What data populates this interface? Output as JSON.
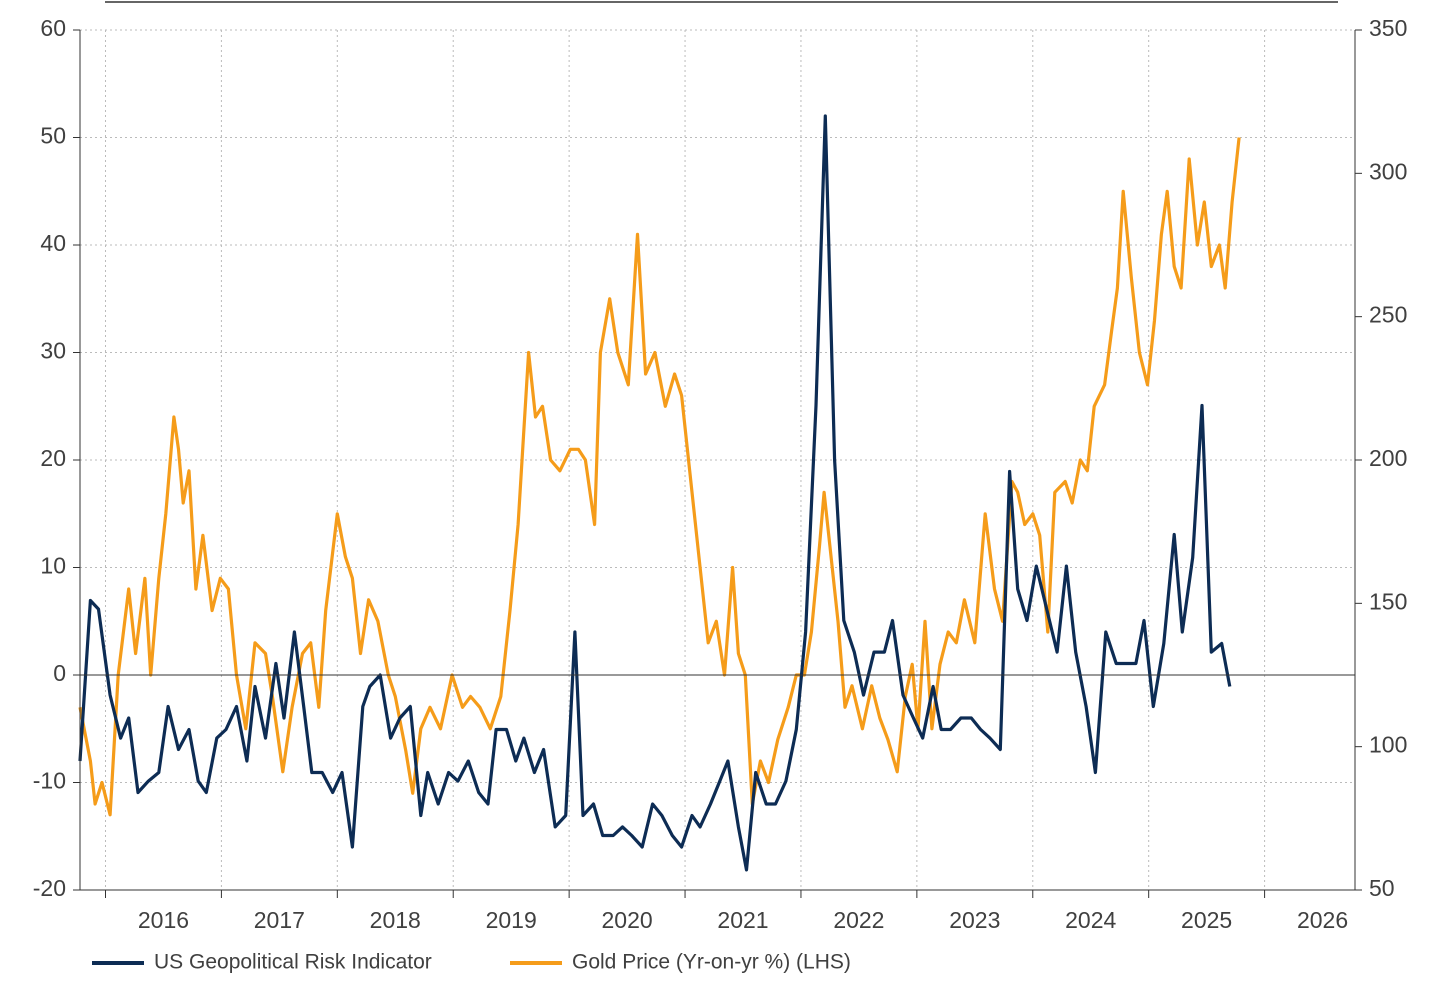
{
  "chart_data": {
    "type": "line",
    "xlim": [
      2015.78,
      2026.78
    ],
    "xticks": [
      2016,
      2017,
      2018,
      2019,
      2020,
      2021,
      2022,
      2023,
      2024,
      2025,
      2026
    ],
    "ylim": [
      -20,
      60
    ],
    "yticks": [
      -20,
      -10,
      0,
      10,
      20,
      30,
      40,
      50,
      60
    ],
    "y2lim": [
      50,
      350
    ],
    "y2ticks": [
      50,
      100,
      150,
      200,
      250,
      300,
      350
    ],
    "grid": true,
    "legend": "bottom",
    "series": [
      {
        "name": "US Geopolitical Risk Indicator",
        "color": "#0d2c54",
        "axis": "y2",
        "x": [
          2015.78,
          2015.87,
          2015.94,
          2016.04,
          2016.13,
          2016.2,
          2016.28,
          2016.37,
          2016.46,
          2016.54,
          2016.63,
          2016.72,
          2016.8,
          2016.87,
          2016.96,
          2017.04,
          2017.13,
          2017.22,
          2017.29,
          2017.38,
          2017.47,
          2017.54,
          2017.63,
          2017.71,
          2017.78,
          2017.87,
          2017.96,
          2018.04,
          2018.13,
          2018.22,
          2018.28,
          2018.37,
          2018.46,
          2018.54,
          2018.63,
          2018.72,
          2018.78,
          2018.87,
          2018.96,
          2019.04,
          2019.13,
          2019.22,
          2019.3,
          2019.37,
          2019.46,
          2019.54,
          2019.61,
          2019.7,
          2019.78,
          2019.88,
          2019.97,
          2020.05,
          2020.12,
          2020.21,
          2020.29,
          2020.38,
          2020.46,
          2020.54,
          2020.63,
          2020.72,
          2020.8,
          2020.89,
          2020.97,
          2021.06,
          2021.13,
          2021.22,
          2021.3,
          2021.37,
          2021.46,
          2021.53,
          2021.61,
          2021.7,
          2021.78,
          2021.87,
          2021.96,
          2022.04,
          2022.13,
          2022.21,
          2022.29,
          2022.37,
          2022.46,
          2022.54,
          2022.63,
          2022.72,
          2022.79,
          2022.88,
          2022.97,
          2023.05,
          2023.14,
          2023.21,
          2023.29,
          2023.38,
          2023.47,
          2023.55,
          2023.63,
          2023.72,
          2023.8,
          2023.87,
          2023.95,
          2024.03,
          2024.12,
          2024.21,
          2024.29,
          2024.37,
          2024.46,
          2024.54,
          2024.63,
          2024.72,
          2024.8,
          2024.89,
          2024.96,
          2025.04,
          2025.13,
          2025.22,
          2025.29,
          2025.38,
          2025.46,
          2025.54,
          2025.63,
          2025.7
        ],
        "values": [
          95,
          151,
          148,
          118,
          103,
          110,
          84,
          88,
          91,
          114,
          99,
          106,
          88,
          84,
          103,
          106,
          114,
          95,
          121,
          103,
          129,
          110,
          140,
          114,
          91,
          91,
          84,
          91,
          65,
          114,
          121,
          125,
          103,
          110,
          114,
          76,
          91,
          80,
          91,
          88,
          95,
          84,
          80,
          106,
          106,
          95,
          103,
          91,
          99,
          72,
          76,
          140,
          76,
          80,
          69,
          69,
          72,
          69,
          65,
          80,
          76,
          69,
          65,
          76,
          72,
          80,
          88,
          95,
          72,
          57,
          91,
          80,
          80,
          88,
          106,
          140,
          219,
          320,
          200,
          144,
          133,
          118,
          133,
          133,
          144,
          118,
          110,
          103,
          121,
          106,
          106,
          110,
          110,
          106,
          103,
          99,
          196,
          155,
          144,
          163,
          148,
          133,
          163,
          133,
          114,
          91,
          140,
          129,
          129,
          129,
          144,
          114,
          136,
          174,
          140,
          166,
          219,
          133,
          136,
          121
        ]
      },
      {
        "name": "Gold Price (Yr-on-yr %) (LHS)",
        "color": "#f59c1a",
        "x": [
          2015.78,
          2015.87,
          2015.91,
          2015.97,
          2016.04,
          2016.11,
          2016.2,
          2016.26,
          2016.34,
          2016.39,
          2016.46,
          2016.52,
          2016.59,
          2016.63,
          2016.67,
          2016.72,
          2016.78,
          2016.84,
          2016.92,
          2016.99,
          2017.06,
          2017.13,
          2017.21,
          2017.29,
          2017.38,
          2017.44,
          2017.53,
          2017.61,
          2017.7,
          2017.77,
          2017.84,
          2017.9,
          2018.0,
          2018.07,
          2018.13,
          2018.2,
          2018.27,
          2018.35,
          2018.44,
          2018.5,
          2018.59,
          2018.65,
          2018.72,
          2018.8,
          2018.89,
          2018.99,
          2019.08,
          2019.15,
          2019.23,
          2019.32,
          2019.41,
          2019.49,
          2019.56,
          2019.65,
          2019.71,
          2019.77,
          2019.84,
          2019.92,
          2020.01,
          2020.08,
          2020.14,
          2020.22,
          2020.27,
          2020.35,
          2020.42,
          2020.51,
          2020.59,
          2020.66,
          2020.74,
          2020.83,
          2020.91,
          2020.97,
          2021.04,
          2021.13,
          2021.2,
          2021.27,
          2021.34,
          2021.41,
          2021.46,
          2021.52,
          2021.58,
          2021.65,
          2021.72,
          2021.8,
          2021.89,
          2021.96,
          2022.03,
          2022.09,
          2022.16,
          2022.2,
          2022.25,
          2022.32,
          2022.38,
          2022.44,
          2022.53,
          2022.61,
          2022.68,
          2022.75,
          2022.83,
          2022.9,
          2022.96,
          2023.01,
          2023.07,
          2023.13,
          2023.2,
          2023.27,
          2023.34,
          2023.41,
          2023.5,
          2023.59,
          2023.67,
          2023.74,
          2023.82,
          2023.87,
          2023.93,
          2024.0,
          2024.06,
          2024.13,
          2024.19,
          2024.28,
          2024.34,
          2024.41,
          2024.47,
          2024.53,
          2024.62,
          2024.68,
          2024.73,
          2024.78,
          2024.85,
          2024.92,
          2024.99,
          2025.05,
          2025.11,
          2025.16,
          2025.22,
          2025.28,
          2025.35,
          2025.42,
          2025.48,
          2025.54,
          2025.61,
          2025.66,
          2025.72,
          2025.78
        ],
        "values": [
          -3,
          -8,
          -12,
          -10,
          -13,
          0,
          8,
          2,
          9,
          0,
          9,
          15,
          24,
          21,
          16,
          19,
          8,
          13,
          6,
          9,
          8,
          0,
          -5,
          3,
          2,
          -2,
          -9,
          -3,
          2,
          3,
          -3,
          6,
          15,
          11,
          9,
          2,
          7,
          5,
          0,
          -2,
          -7,
          -11,
          -5,
          -3,
          -5,
          0,
          -3,
          -2,
          -3,
          -5,
          -2,
          6,
          14,
          30,
          24,
          25,
          20,
          19,
          21,
          21,
          20,
          14,
          30,
          35,
          30,
          27,
          41,
          28,
          30,
          25,
          28,
          26,
          19,
          10,
          3,
          5,
          0,
          10,
          2,
          0,
          -12,
          -8,
          -10,
          -6,
          -3,
          0,
          0,
          4,
          12,
          17,
          12,
          5,
          -3,
          -1,
          -5,
          -1,
          -4,
          -6,
          -9,
          -2,
          1,
          -5,
          5,
          -5,
          1,
          4,
          3,
          7,
          3,
          15,
          8,
          5,
          18,
          17,
          14,
          15,
          13,
          4,
          17,
          18,
          16,
          20,
          19,
          25,
          27,
          32,
          36,
          45,
          37,
          30,
          27,
          33,
          41,
          45,
          38,
          36,
          48,
          40,
          44,
          38,
          40,
          36,
          44,
          50
        ]
      }
    ]
  }
}
